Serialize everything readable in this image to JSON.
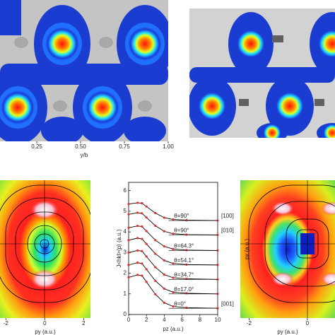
{
  "chart_data": [
    {
      "type": "contour",
      "xlabel": "y/b",
      "xlim": [
        0.04,
        1.0
      ],
      "xticks": [
        0.25,
        {
          "value": 0.5,
          "label": "0.50"
        },
        0.75,
        {
          "value": 1,
          "label": "1.00"
        }
      ]
    },
    {
      "type": "contour",
      "xlabel": "py (a.u.)",
      "xlim": [
        -2.3,
        2.35
      ],
      "xticks": [
        -2,
        0,
        2
      ]
    },
    {
      "type": "line",
      "xlabel": "pz (a.u.)",
      "ylabel": "J<hkl>(p) (a.u.)",
      "xlim": [
        0,
        10
      ],
      "ylim": [
        0,
        6.4
      ],
      "xticks": [
        0,
        2,
        4,
        6,
        8,
        10
      ],
      "yticks": [
        0,
        1,
        2,
        3,
        4,
        5,
        6
      ],
      "line_color": "#000000",
      "marker_color": "#e03030",
      "x": [
        0,
        1,
        1.5,
        2,
        3,
        4,
        5,
        6.5,
        10
      ],
      "series": [
        {
          "name": "θ=90°",
          "direction": "[100]",
          "values": [
            5.35,
            5.41,
            5.39,
            5.23,
            4.91,
            4.69,
            4.6,
            4.57,
            4.55
          ]
        },
        {
          "name": "θ=90°",
          "direction": "[010]",
          "values": [
            4.85,
            4.93,
            4.9,
            4.7,
            4.3,
            4.03,
            3.91,
            3.87,
            3.85
          ]
        },
        {
          "name": "θ=64.3°",
          "values": [
            4.2,
            4.29,
            4.26,
            4.04,
            3.6,
            3.3,
            3.17,
            3.12,
            3.1
          ]
        },
        {
          "name": "θ=54.1°",
          "values": [
            3.6,
            3.7,
            3.66,
            3.42,
            2.94,
            2.62,
            2.47,
            2.42,
            2.4
          ]
        },
        {
          "name": "θ=34.7°",
          "values": [
            3.0,
            3.1,
            3.07,
            2.81,
            2.29,
            1.93,
            1.78,
            1.73,
            1.7
          ]
        },
        {
          "name": "θ=17.0°",
          "values": [
            2.4,
            2.51,
            2.47,
            2.19,
            1.63,
            1.25,
            1.08,
            1.03,
            1.0
          ]
        },
        {
          "name": "θ=0°",
          "direction": "[001]",
          "values": [
            1.8,
            1.92,
            1.88,
            1.58,
            0.98,
            0.57,
            0.39,
            0.33,
            0.3
          ]
        }
      ]
    },
    {
      "type": "contour",
      "xlabel": "py (a.u.)",
      "ylabel": "px (a.u.)",
      "xlim": [
        -2.3,
        0.95
      ],
      "xticks": [
        -2,
        0
      ]
    }
  ]
}
